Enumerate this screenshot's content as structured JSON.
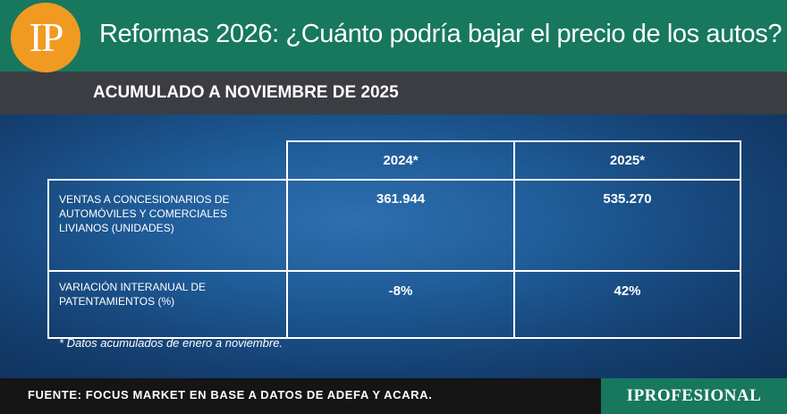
{
  "header": {
    "logo_text": "IP",
    "title": "Reformas 2026: ¿Cuánto podría bajar el precio de los autos?"
  },
  "subheader": {
    "title": "ACUMULADO A NOVIEMBRE DE 2025"
  },
  "table": {
    "columns": [
      "",
      "2024*",
      "2025*"
    ],
    "rows": [
      {
        "label": "VENTAS A CONCESIONARIOS DE AUTOMÓVILES Y COMERCIALES LIVIANOS (UNIDADES)",
        "values": [
          "361.944",
          "535.270"
        ]
      },
      {
        "label": "VARIACIÓN INTERANUAL DE PATENTAMIENTOS (%)",
        "values": [
          "-8%",
          "42%"
        ]
      }
    ]
  },
  "note": "* Datos acumulados de enero a noviembre.",
  "footer": {
    "source": "FUENTE: FOCUS MARKET EN BASE A DATOS DE ADEFA Y ACARA.",
    "brand": "IPROFESIONAL"
  },
  "colors": {
    "header_green": "#17785e",
    "logo_orange": "#f19a22",
    "subheader_gray": "#3b3d42",
    "panel_blue": "#1f5b97",
    "footer_black": "#151515"
  }
}
